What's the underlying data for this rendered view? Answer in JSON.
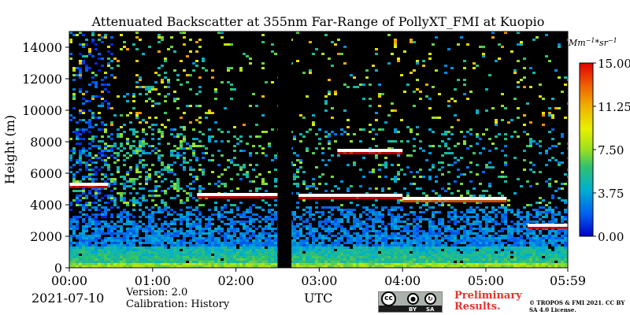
{
  "chart_data": {
    "type": "heatmap",
    "title": "Attenuated Backscatter at 355nm Far-Range of PollyXT_FMI at Kuopio",
    "xlabel": "UTC",
    "ylabel": "Height (m)",
    "xlim": [
      "00:00",
      "05:59"
    ],
    "ylim": [
      0,
      15000
    ],
    "x_ticks": [
      "00:00",
      "01:00",
      "02:00",
      "03:00",
      "04:00",
      "05:00",
      "05:59"
    ],
    "y_ticks": [
      "0",
      "2000",
      "4000",
      "6000",
      "8000",
      "10000",
      "12000",
      "14000"
    ],
    "colorbar": {
      "unit": "Mm^-1*sr^-1",
      "ticks": [
        "15.00",
        "11.25",
        "7.50",
        "3.75",
        "0.00"
      ],
      "range": [
        0,
        15
      ]
    },
    "features": [
      {
        "start": "00:00",
        "end": "00:28",
        "height_m": 5300,
        "intensity": 15
      },
      {
        "start": "01:32",
        "end": "02:30",
        "height_m": 4650,
        "intensity": 15
      },
      {
        "start": "02:45",
        "end": "04:00",
        "height_m": 4600,
        "intensity": 15
      },
      {
        "start": "03:13",
        "end": "04:00",
        "height_m": 7450,
        "intensity": 15
      },
      {
        "start": "04:00",
        "end": "05:15",
        "height_m": 4400,
        "intensity": 13
      },
      {
        "start": "05:30",
        "end": "05:59",
        "height_m": 2700,
        "intensity": 15
      }
    ],
    "data_gap": {
      "start": "02:30",
      "end": "02:40"
    },
    "colors": {
      "background": "#000000",
      "cloud": "#ffffff"
    }
  },
  "footer": {
    "date": "2021-07-10",
    "version": "Version: 2.0",
    "calibration": "Calibration: History",
    "xlabel": "UTC",
    "license_badge": {
      "icon": "cc-by-sa-badge",
      "cc": "cc",
      "by": "BY",
      "sa": "SA"
    },
    "preliminary": "Preliminary Results.",
    "copyright": "© TROPOS & FMI 2021. CC BY SA 4.0 License."
  }
}
